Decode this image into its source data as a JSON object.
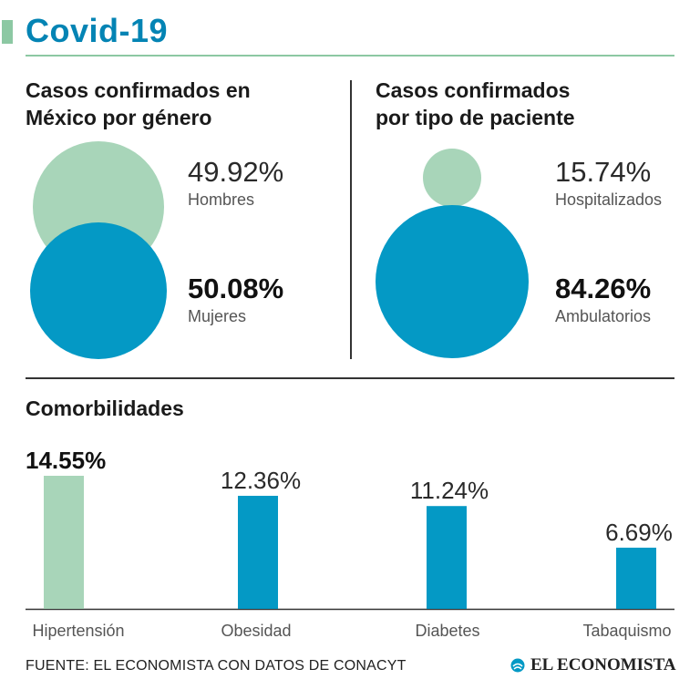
{
  "colors": {
    "accent_green": "#a8d5b9",
    "accent_blue": "#0499c5",
    "title_blue": "#0484b4",
    "rule_green": "#8cc8a3"
  },
  "header": {
    "title": "Covid-19"
  },
  "gender": {
    "title_line1": "Casos confirmados en",
    "title_line2": "México por género",
    "men": {
      "value": "49.92%",
      "label": "Hombres"
    },
    "women": {
      "value": "50.08%",
      "label": "Mujeres"
    }
  },
  "patient": {
    "title_line1": "Casos confirmados",
    "title_line2": "por tipo de paciente",
    "hospitalized": {
      "value": "15.74%",
      "label": "Hospitalizados"
    },
    "ambulatory": {
      "value": "84.26%",
      "label": "Ambulatorios"
    }
  },
  "chart_data": {
    "type": "bar",
    "title": "Comorbilidades",
    "categories": [
      "Hipertensión",
      "Obesidad",
      "Diabetes",
      "Tabaquismo"
    ],
    "values": [
      14.55,
      12.36,
      11.24,
      6.69
    ],
    "value_labels": [
      "14.55%",
      "12.36%",
      "11.24%",
      "6.69%"
    ],
    "units": "%",
    "ylim": [
      0,
      14.55
    ],
    "highlight_index": 0,
    "xlabel": "",
    "ylabel": ""
  },
  "footer": {
    "source": "FUENTE: EL ECONOMISTA CON DATOS DE CONACYT",
    "logo_text": "EL ECONOMISTA"
  }
}
